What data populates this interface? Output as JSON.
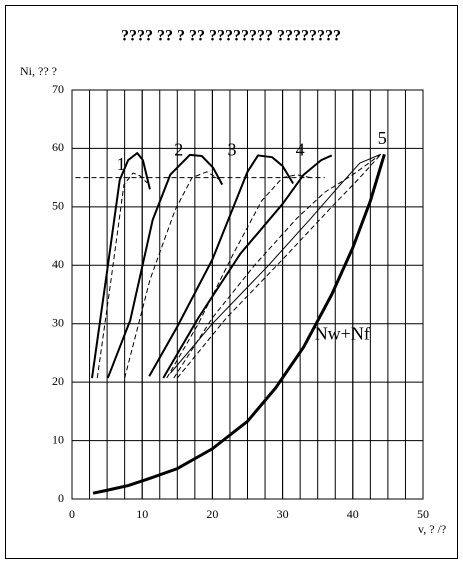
{
  "chart_data": {
    "type": "line",
    "title": "???? ?? ? ?? ???????? ????????",
    "ylabel": "Ni, ?? ?",
    "xlabel": "v, ? /?",
    "xlim": [
      0,
      50
    ],
    "xticks": [
      0,
      10,
      20,
      30,
      40,
      50
    ],
    "ylim": [
      0,
      70
    ],
    "yticks": [
      0,
      10,
      20,
      30,
      40,
      50,
      60,
      70
    ],
    "grid": true,
    "x_minor_grid_step": 2.5,
    "series": [
      {
        "color": "#000",
        "width": 2,
        "dash": false,
        "x": [
          2.85,
          5,
          6.8,
          8,
          9.3,
          10.1,
          11.1
        ],
        "values": [
          20.7,
          39,
          54.6,
          58,
          59.2,
          58,
          53
        ]
      },
      {
        "color": "#000",
        "width": 1,
        "dash": true,
        "x": [
          3.6,
          5.5,
          7.4,
          8.7,
          9.7,
          10.7
        ],
        "values": [
          20.7,
          37,
          53.8,
          55.8,
          55.3,
          54.1
        ]
      },
      {
        "color": "#000",
        "width": 2,
        "dash": false,
        "x": [
          5.1,
          8.3,
          11.5,
          14,
          16.8,
          18.5,
          20.1,
          21.4
        ],
        "values": [
          20.7,
          30.6,
          47.8,
          55.5,
          58.9,
          58.7,
          56.7,
          53.8
        ]
      },
      {
        "color": "#000",
        "width": 1,
        "dash": true,
        "x": [
          7.5,
          11.1,
          14.7,
          17.1,
          19.2,
          21.1
        ],
        "values": [
          20.7,
          37.5,
          49.5,
          55,
          56,
          54.6
        ]
      },
      {
        "color": "#000",
        "width": 2,
        "dash": false,
        "x": [
          11,
          15,
          20,
          23,
          25,
          26.5,
          28.5,
          30,
          31.5
        ],
        "values": [
          21,
          29.5,
          41,
          50,
          56,
          58.8,
          58.5,
          57,
          54
        ]
      },
      {
        "color": "#000",
        "width": 1,
        "dash": true,
        "x": [
          13.5,
          18,
          23,
          27,
          30,
          32,
          34
        ],
        "values": [
          20.7,
          30,
          42,
          51,
          55,
          55.5,
          55
        ]
      },
      {
        "color": "#000",
        "width": 2,
        "dash": false,
        "x": [
          13,
          18,
          24,
          30,
          33,
          35.5,
          37
        ],
        "values": [
          20.7,
          31,
          42,
          50.5,
          55.5,
          58,
          58.8
        ]
      },
      {
        "color": "#000",
        "width": 1,
        "dash": false,
        "x": [
          14,
          20,
          28,
          34,
          38,
          41,
          44
        ],
        "values": [
          21.5,
          30,
          40,
          48,
          53.5,
          57.5,
          59
        ]
      },
      {
        "color": "#000",
        "width": 1,
        "dash": true,
        "x": [
          14.5,
          20,
          26,
          32,
          36,
          40,
          44
        ],
        "values": [
          20.7,
          31,
          40,
          48,
          52.5,
          55.5,
          59
        ]
      },
      {
        "color": "#000",
        "width": 1,
        "dash": true,
        "x": [
          15,
          22,
          30,
          37,
          41,
          44
        ],
        "values": [
          20.7,
          31,
          41,
          50,
          55,
          59
        ]
      },
      {
        "color": "#000",
        "width": 1,
        "dash": true,
        "x": [
          0.5,
          36
        ],
        "values": [
          55,
          55
        ]
      },
      {
        "color": "#000",
        "width": 3,
        "dash": false,
        "x": [
          3,
          5,
          8,
          11,
          15,
          20,
          25,
          29,
          33,
          37,
          40,
          42.5,
          44.5
        ],
        "values": [
          1,
          1.5,
          2.3,
          3.5,
          5.2,
          8.6,
          13.3,
          19,
          26,
          35,
          43,
          51,
          59
        ]
      }
    ],
    "annotations": [
      {
        "text": "1",
        "x": 7,
        "y": 57
      },
      {
        "text": "2",
        "x": 15.2,
        "y": 59.5
      },
      {
        "text": "3",
        "x": 22.8,
        "y": 59.5
      },
      {
        "text": "4",
        "x": 32.5,
        "y": 59.5
      },
      {
        "text": "5",
        "x": 44.2,
        "y": 61.5
      },
      {
        "text": "Nw+Nf",
        "x": 38.5,
        "y": 28
      }
    ]
  }
}
